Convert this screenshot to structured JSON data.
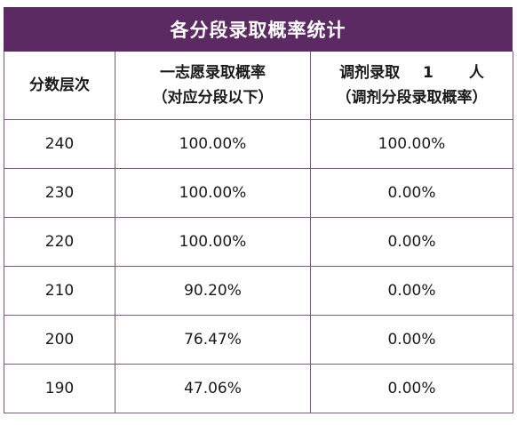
{
  "title": "各分段录取概率统计",
  "headers": {
    "col1": "分数层次",
    "col2_line1": "一志愿录取概率",
    "col2_line2": "（对应分段以下）",
    "col3_prefix": "调剂录取",
    "col3_number": "1",
    "col3_suffix": "人",
    "col3_line2": "（调剂分段录取概率）"
  },
  "rows": [
    {
      "score": "240",
      "first_choice": "100.00%",
      "adjust": "100.00%"
    },
    {
      "score": "230",
      "first_choice": "100.00%",
      "adjust": "0.00%"
    },
    {
      "score": "220",
      "first_choice": "100.00%",
      "adjust": "0.00%"
    },
    {
      "score": "210",
      "first_choice": "90.20%",
      "adjust": "0.00%"
    },
    {
      "score": "200",
      "first_choice": "76.47%",
      "adjust": "0.00%"
    },
    {
      "score": "190",
      "first_choice": "47.06%",
      "adjust": "0.00%"
    }
  ],
  "colors": {
    "header_bg": "#5b2a63",
    "border": "#7a5a80"
  }
}
